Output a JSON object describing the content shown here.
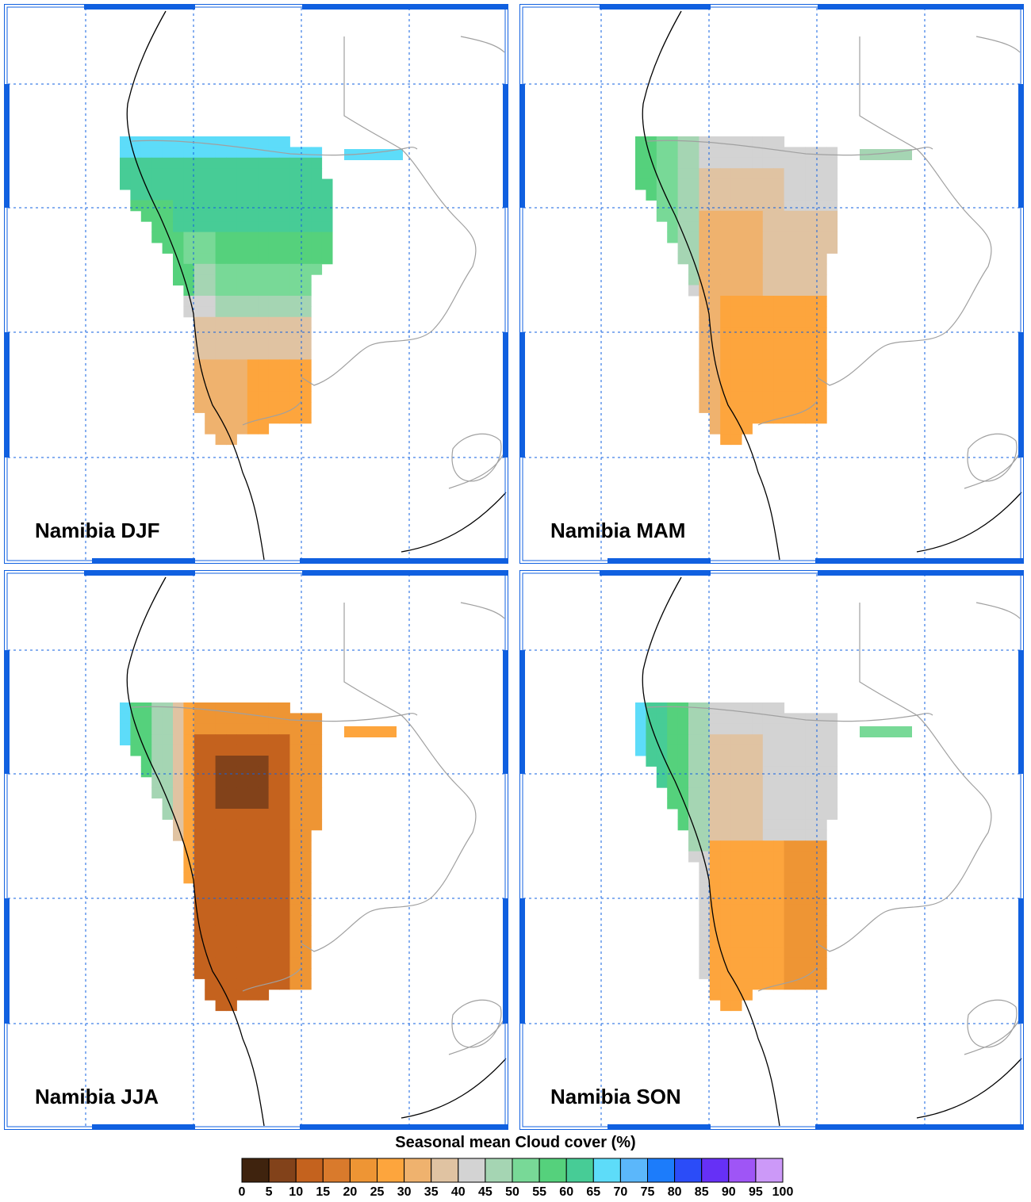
{
  "panels": [
    {
      "title": "Namibia DJF",
      "season": "DJF"
    },
    {
      "title": "Namibia MAM",
      "season": "MAM"
    },
    {
      "title": "Namibia JJA",
      "season": "JJA"
    },
    {
      "title": "Namibia SON",
      "season": "SON"
    }
  ],
  "legend": {
    "title": "Seasonal mean Cloud cover (%)",
    "ticks": [
      "0",
      "5",
      "10",
      "15",
      "20",
      "25",
      "30",
      "35",
      "40",
      "45",
      "50",
      "55",
      "60",
      "65",
      "70",
      "75",
      "80",
      "85",
      "90",
      "95",
      "100"
    ],
    "colors": [
      "#3f230e",
      "#82421a",
      "#c4621e",
      "#d97a2c",
      "#ee9534",
      "#fda53d",
      "#efb26e",
      "#e0c3a2",
      "#d3d3d3",
      "#a5d5b3",
      "#78d997",
      "#55d17c",
      "#47cc96",
      "#5ddcf9",
      "#5bb7fb",
      "#1c7cfb",
      "#2b4cf8",
      "#6630f6",
      "#9f55f6",
      "#cc99f8"
    ]
  },
  "colors": {
    "frame": "#1060e0",
    "grid": "#1060e0",
    "coast": "#000000",
    "border": "#a0a0a0"
  }
}
